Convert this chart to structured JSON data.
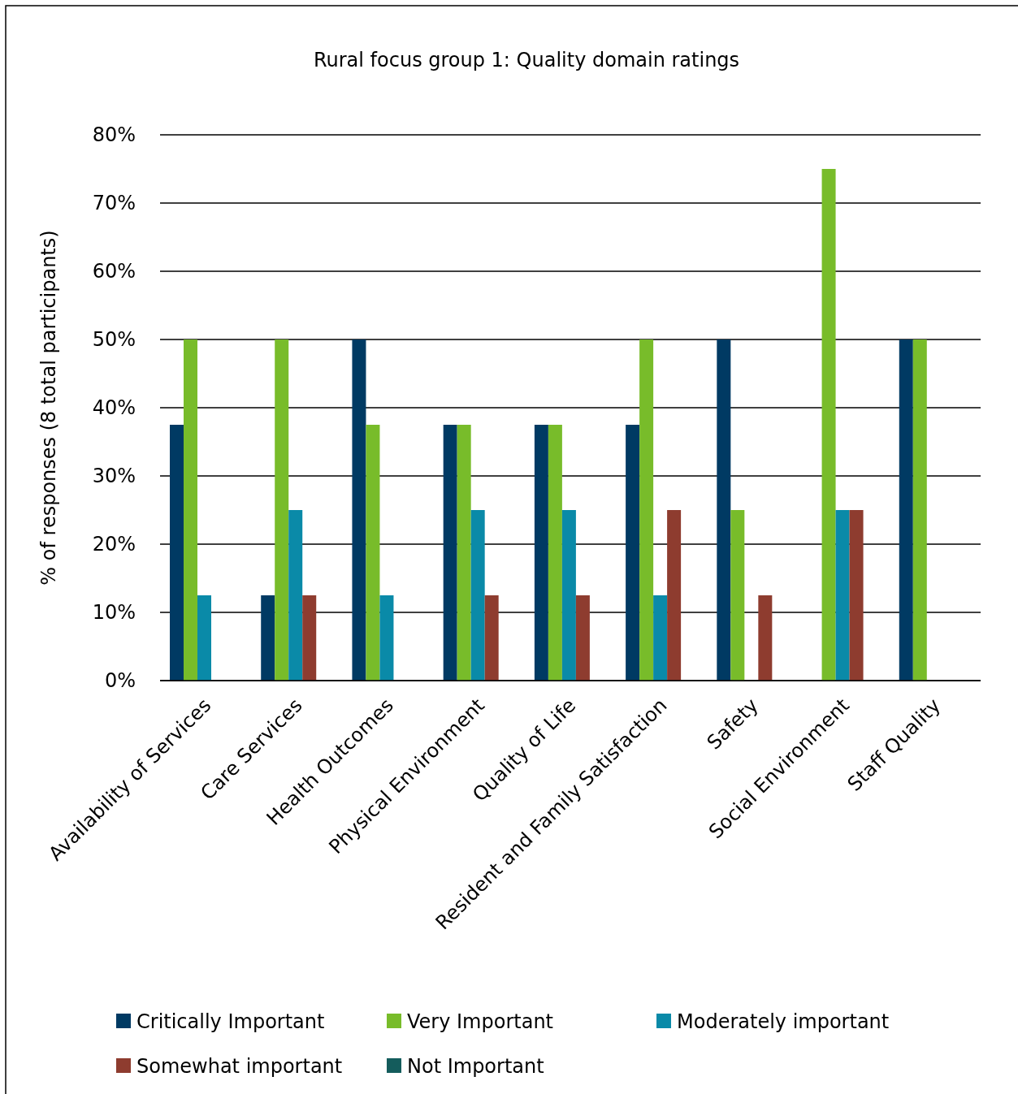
{
  "chart_data": {
    "type": "bar",
    "title": "Rural focus group 1: Quality domain ratings",
    "ylabel": "% of responses (8 total participants)",
    "categories": [
      "Availability of Services",
      "Care Services",
      "Health Outcomes",
      "Physical Environment",
      "Quality of Life",
      "Resident and Family Satisfaction",
      "Safety",
      "Social Environment",
      "Staff Quality"
    ],
    "series": [
      {
        "name": "Critically Important",
        "color": "#003a63",
        "values": [
          37.5,
          12.5,
          50,
          37.5,
          37.5,
          37.5,
          50,
          0,
          50
        ]
      },
      {
        "name": "Very Important",
        "color": "#78bc2a",
        "values": [
          50,
          50,
          37.5,
          37.5,
          37.5,
          50,
          25,
          75,
          50
        ]
      },
      {
        "name": "Moderately important",
        "color": "#0a8aa8",
        "values": [
          12.5,
          25,
          12.5,
          25,
          25,
          12.5,
          0,
          25,
          0
        ]
      },
      {
        "name": "Somewhat important",
        "color": "#8e3c2f",
        "values": [
          0,
          12.5,
          0,
          12.5,
          12.5,
          25,
          12.5,
          25,
          0
        ]
      },
      {
        "name": "Not Important",
        "color": "#145c5c",
        "values": [
          0,
          0,
          0,
          0,
          0,
          0,
          0,
          0,
          0
        ]
      }
    ],
    "ylim": [
      0,
      80
    ],
    "yticks": [
      {
        "value": 0,
        "label": "0%"
      },
      {
        "value": 10,
        "label": "10%"
      },
      {
        "value": 20,
        "label": "20%"
      },
      {
        "value": 30,
        "label": "30%"
      },
      {
        "value": 40,
        "label": "40%"
      },
      {
        "value": 50,
        "label": "50%"
      },
      {
        "value": 60,
        "label": "60%"
      },
      {
        "value": 70,
        "label": "70%"
      },
      {
        "value": 80,
        "label": "80%"
      }
    ],
    "grid": "y",
    "legend": "bottom"
  }
}
